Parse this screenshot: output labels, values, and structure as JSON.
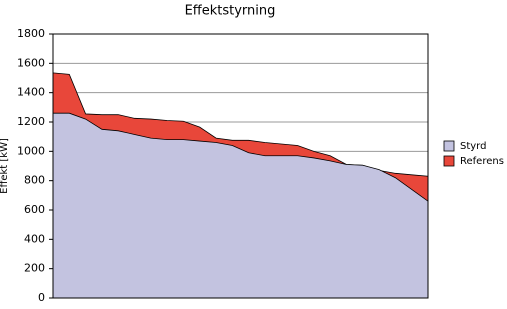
{
  "chart_data": {
    "type": "area",
    "title": "Effektstyrning",
    "y_label": "Effekt [kW]",
    "categories": [
      null,
      null,
      null,
      null,
      null,
      null,
      null,
      null,
      null,
      null,
      null,
      null,
      null,
      null,
      null,
      null,
      null,
      null,
      null,
      null,
      null,
      null,
      null,
      null
    ],
    "series": [
      {
        "name": "Referens",
        "color": "#e8473a",
        "values": [
          1535,
          1525,
          1255,
          1250,
          1250,
          1225,
          1220,
          1210,
          1205,
          1165,
          1090,
          1075,
          1075,
          1060,
          1050,
          1040,
          1000,
          970,
          910,
          905,
          870,
          850,
          840,
          830
        ]
      },
      {
        "name": "Styrd",
        "color": "#c3c3e0",
        "values": [
          1260,
          1260,
          1220,
          1150,
          1140,
          1115,
          1090,
          1080,
          1080,
          1070,
          1060,
          1040,
          990,
          970,
          970,
          970,
          955,
          935,
          910,
          905,
          875,
          820,
          740,
          660
        ]
      }
    ],
    "legend_order": [
      1,
      0
    ],
    "ylim": [
      0,
      1800
    ],
    "yticks": [
      0,
      200,
      400,
      600,
      800,
      1000,
      1200,
      1400,
      1600,
      1800
    ],
    "grid": true
  }
}
